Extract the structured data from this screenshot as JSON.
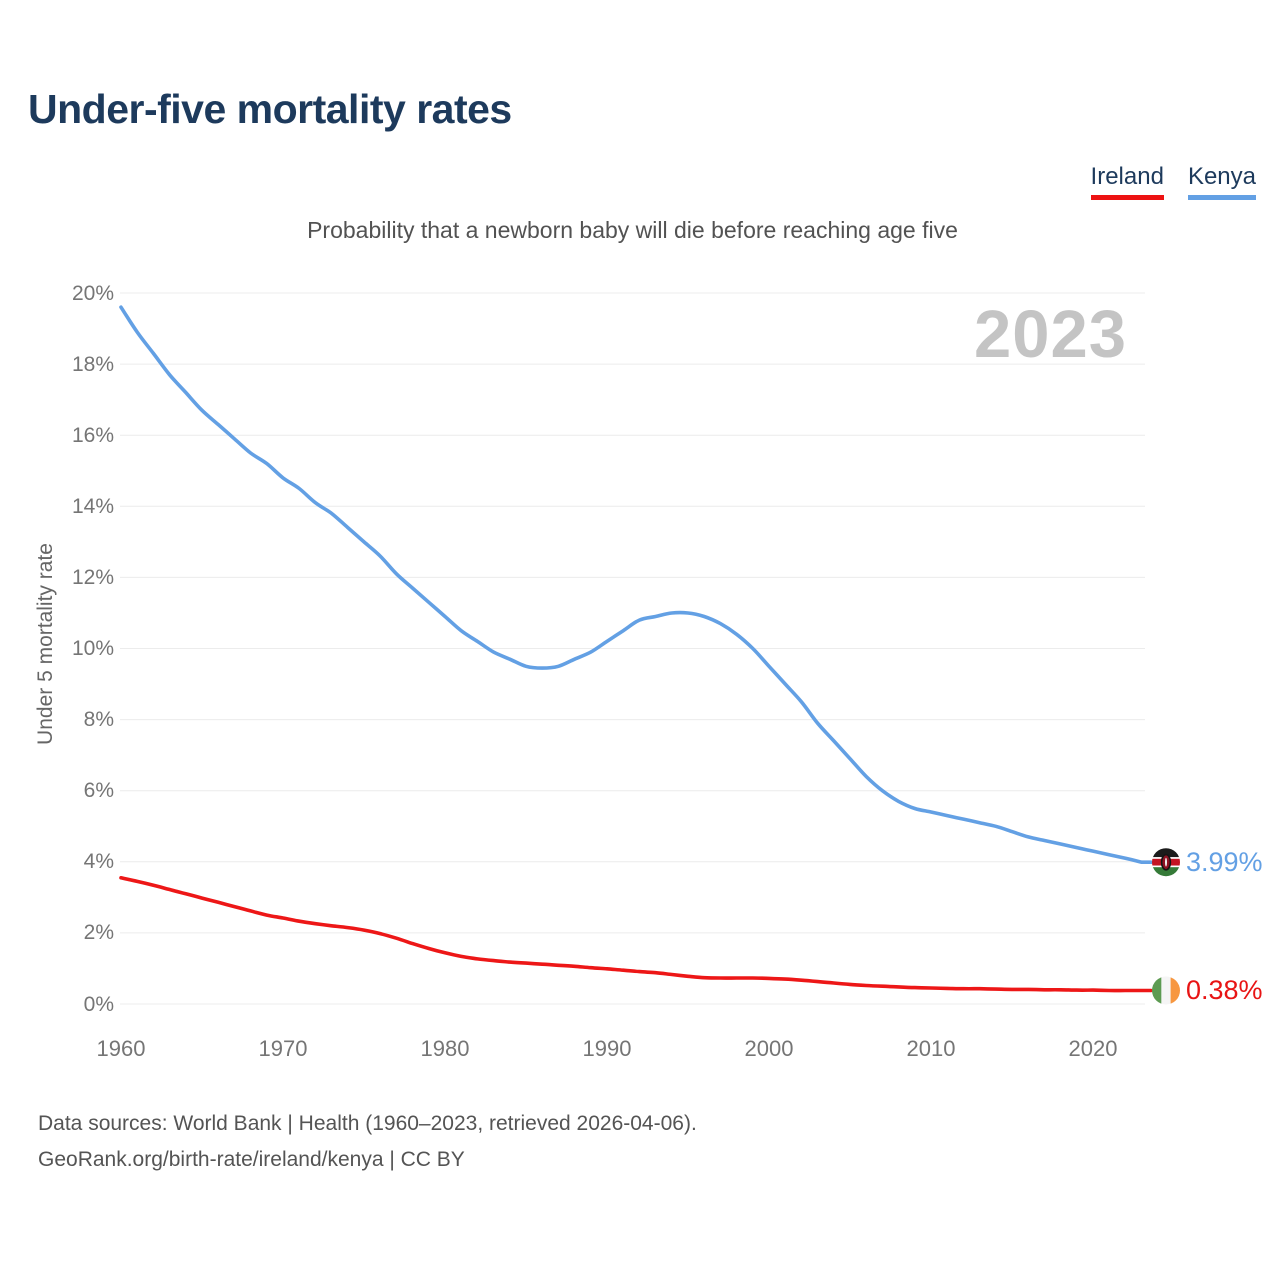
{
  "page": {
    "title": "Under-five mortality rates",
    "subtitle": "Probability that a newborn baby will die before reaching age five",
    "year_watermark": "2023",
    "footer_line1": "Data sources: World Bank | Health (1960–2023, retrieved 2026-04-06).",
    "footer_line2": "GeoRank.org/birth-rate/ireland/kenya | CC BY"
  },
  "legend": {
    "items": [
      {
        "label": "Ireland",
        "color": "#ed1212"
      },
      {
        "label": "Kenya",
        "color": "#63a0e4"
      }
    ]
  },
  "end_labels": [
    {
      "series": "Kenya",
      "value": "3.99%",
      "color": "#63a0e4",
      "icon": "kenya-flag-icon"
    },
    {
      "series": "Ireland",
      "value": "0.38%",
      "color": "#e81414",
      "icon": "ireland-flag-icon"
    }
  ],
  "chart_data": {
    "type": "line",
    "title": "Under-five mortality rates",
    "subtitle": "Probability that a newborn baby will die before reaching age five",
    "xlabel": "",
    "ylabel": "Under 5 mortality rate",
    "ylim": [
      0,
      20
    ],
    "ytick_step": 2,
    "ytick_suffix": "%",
    "xticks": [
      1960,
      1970,
      1980,
      1990,
      2000,
      2010,
      2020
    ],
    "grid": "horizontal",
    "legend_position": "top-right",
    "x": [
      1960,
      1961,
      1962,
      1963,
      1964,
      1965,
      1966,
      1967,
      1968,
      1969,
      1970,
      1971,
      1972,
      1973,
      1974,
      1975,
      1976,
      1977,
      1978,
      1979,
      1980,
      1981,
      1982,
      1983,
      1984,
      1985,
      1986,
      1987,
      1988,
      1989,
      1990,
      1991,
      1992,
      1993,
      1994,
      1995,
      1996,
      1997,
      1998,
      1999,
      2000,
      2001,
      2002,
      2003,
      2004,
      2005,
      2006,
      2007,
      2008,
      2009,
      2010,
      2011,
      2012,
      2013,
      2014,
      2015,
      2016,
      2017,
      2018,
      2019,
      2020,
      2021,
      2022,
      2023
    ],
    "series": [
      {
        "name": "Ireland",
        "color": "#ed1717",
        "unit": "%",
        "final_value_label": "0.38%",
        "values": [
          3.55,
          3.45,
          3.34,
          3.22,
          3.1,
          2.98,
          2.86,
          2.74,
          2.62,
          2.5,
          2.42,
          2.33,
          2.26,
          2.2,
          2.15,
          2.08,
          1.98,
          1.85,
          1.7,
          1.56,
          1.44,
          1.34,
          1.27,
          1.22,
          1.18,
          1.15,
          1.12,
          1.09,
          1.06,
          1.02,
          0.99,
          0.95,
          0.91,
          0.88,
          0.83,
          0.78,
          0.74,
          0.73,
          0.73,
          0.73,
          0.72,
          0.7,
          0.67,
          0.63,
          0.59,
          0.55,
          0.52,
          0.5,
          0.48,
          0.46,
          0.45,
          0.44,
          0.43,
          0.43,
          0.42,
          0.41,
          0.41,
          0.4,
          0.4,
          0.39,
          0.39,
          0.38,
          0.38,
          0.38
        ]
      },
      {
        "name": "Kenya",
        "color": "#63a0e4",
        "unit": "%",
        "final_value_label": "3.99%",
        "values": [
          19.6,
          18.9,
          18.3,
          17.7,
          17.2,
          16.7,
          16.3,
          15.9,
          15.5,
          15.2,
          14.8,
          14.5,
          14.1,
          13.8,
          13.4,
          13.0,
          12.6,
          12.1,
          11.7,
          11.3,
          10.9,
          10.5,
          10.2,
          9.9,
          9.7,
          9.5,
          9.45,
          9.5,
          9.7,
          9.9,
          10.2,
          10.5,
          10.8,
          10.9,
          11.0,
          11.0,
          10.9,
          10.7,
          10.4,
          10.0,
          9.5,
          9.0,
          8.5,
          7.9,
          7.4,
          6.9,
          6.4,
          6.0,
          5.7,
          5.5,
          5.4,
          5.3,
          5.2,
          5.1,
          5.0,
          4.85,
          4.7,
          4.6,
          4.5,
          4.4,
          4.3,
          4.2,
          4.1,
          3.99
        ]
      }
    ]
  }
}
